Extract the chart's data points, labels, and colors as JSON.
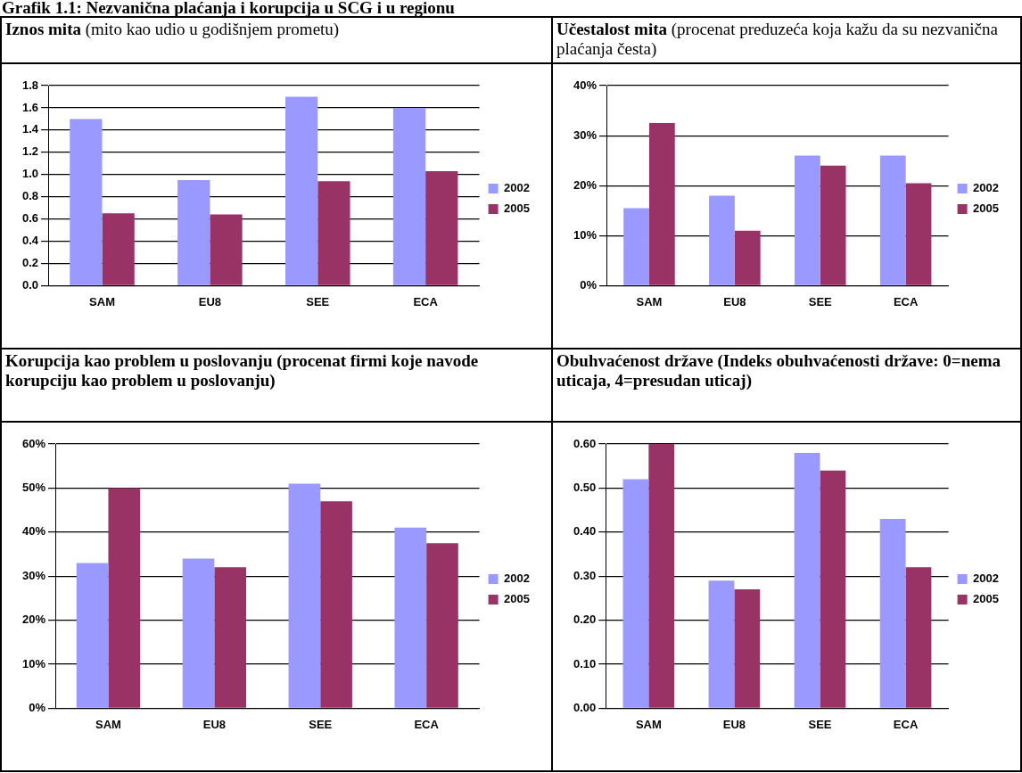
{
  "chart_data": [
    {
      "type": "bar",
      "title": "Iznos mita",
      "subtitle": "(mito kao udio u godišnjem prometu)",
      "annotations": [
        "Grafik 1.1: Nezvanična plaćanja i korupcija u SCG i u regionu"
      ],
      "categories": [
        "SAM",
        "EU8",
        "SEE",
        "ECA"
      ],
      "series": [
        {
          "name": "2002",
          "color": "#9999ff",
          "values": [
            1.5,
            0.95,
            1.7,
            1.6
          ]
        },
        {
          "name": "2005",
          "color": "#993366",
          "values": [
            0.65,
            0.64,
            0.94,
            1.03
          ]
        }
      ],
      "ylim": [
        0,
        1.8
      ],
      "yticks": [
        {
          "value": 0,
          "label": "0.0"
        },
        {
          "value": 0.2,
          "label": "0.2"
        },
        {
          "value": 0.4,
          "label": "0.4"
        },
        {
          "value": 0.6,
          "label": "0.6"
        },
        {
          "value": 0.8,
          "label": "0.8"
        },
        {
          "value": 1,
          "label": "1.0"
        },
        {
          "value": 1.2,
          "label": "1.2"
        },
        {
          "value": 1.4,
          "label": "1.4"
        },
        {
          "value": 1.6,
          "label": "1.6"
        },
        {
          "value": 1.8,
          "label": "1.8"
        }
      ],
      "grid": "y",
      "legend": "right"
    },
    {
      "type": "bar",
      "title": "Učestalost mita",
      "subtitle": "(procenat preduzeća koja kažu da su nezvanična plaćanja česta)",
      "categories": [
        "SAM",
        "EU8",
        "SEE",
        "ECA"
      ],
      "series": [
        {
          "name": "2002",
          "color": "#9999ff",
          "values": [
            15.5,
            18,
            26,
            26
          ]
        },
        {
          "name": "2005",
          "color": "#993366",
          "values": [
            32.5,
            11,
            24,
            20.5
          ]
        }
      ],
      "ylim": [
        0,
        40
      ],
      "yticks": [
        {
          "value": 0,
          "label": "0%"
        },
        {
          "value": 10,
          "label": "10%"
        },
        {
          "value": 20,
          "label": "20%"
        },
        {
          "value": 30,
          "label": "30%"
        },
        {
          "value": 40,
          "label": "40%"
        }
      ],
      "grid": "y",
      "legend": "right"
    },
    {
      "type": "bar",
      "title": "Korupcija kao problem u poslovanju (procenat firmi koje navode korupciju kao problem u poslovanju)",
      "categories": [
        "SAM",
        "EU8",
        "SEE",
        "ECA"
      ],
      "series": [
        {
          "name": "2002",
          "color": "#9999ff",
          "values": [
            33,
            34,
            51,
            41
          ]
        },
        {
          "name": "2005",
          "color": "#993366",
          "values": [
            50,
            32,
            47,
            37.5
          ]
        }
      ],
      "ylim": [
        0,
        60
      ],
      "yticks": [
        {
          "value": 0,
          "label": "0%"
        },
        {
          "value": 10,
          "label": "10%"
        },
        {
          "value": 20,
          "label": "20%"
        },
        {
          "value": 30,
          "label": "30%"
        },
        {
          "value": 40,
          "label": "40%"
        },
        {
          "value": 50,
          "label": "50%"
        },
        {
          "value": 60,
          "label": "60%"
        }
      ],
      "grid": "y",
      "legend": "right"
    },
    {
      "type": "bar",
      "title": "Obuhvaćenost države (Indeks obuhvaćenosti države: 0=nema uticaja, 4=presudan uticaj)",
      "categories": [
        "SAM",
        "EU8",
        "SEE",
        "ECA"
      ],
      "series": [
        {
          "name": "2002",
          "color": "#9999ff",
          "values": [
            0.52,
            0.29,
            0.58,
            0.43
          ]
        },
        {
          "name": "2005",
          "color": "#993366",
          "values": [
            0.6,
            0.27,
            0.54,
            0.32
          ]
        }
      ],
      "ylim": [
        0,
        0.6
      ],
      "yticks": [
        {
          "value": 0,
          "label": "0.00"
        },
        {
          "value": 0.1,
          "label": "0.10"
        },
        {
          "value": 0.2,
          "label": "0.20"
        },
        {
          "value": 0.3,
          "label": "0.30"
        },
        {
          "value": 0.4,
          "label": "0.40"
        },
        {
          "value": 0.5,
          "label": "0.50"
        },
        {
          "value": 0.6,
          "label": "0.60"
        }
      ],
      "grid": "y",
      "legend": "right"
    }
  ]
}
